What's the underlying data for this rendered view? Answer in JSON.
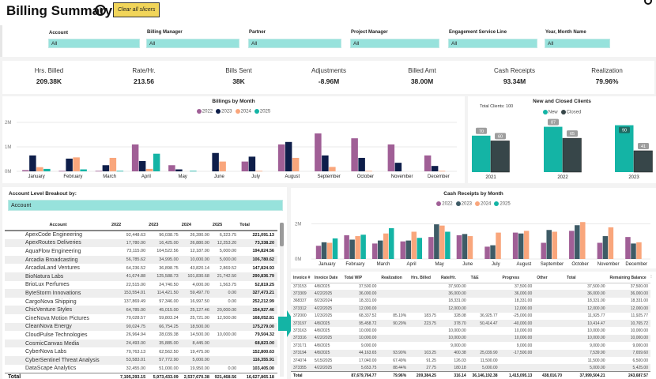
{
  "header": {
    "title": "Billing Summary",
    "info_icon": "i",
    "clear_button": "Clear all slicers"
  },
  "slicers": [
    {
      "label": "Account",
      "value": "All"
    },
    {
      "label": "Billing Manager",
      "value": "All"
    },
    {
      "label": "Partner",
      "value": "All"
    },
    {
      "label": "Project Manager",
      "value": "All"
    },
    {
      "label": "Engagement Service Line",
      "value": "All"
    },
    {
      "label": "Year, Month Name",
      "value": "All"
    }
  ],
  "kpis": [
    {
      "label": "Hrs. Billed",
      "value": "209.38K"
    },
    {
      "label": "Rate/Hr.",
      "value": "213.56"
    },
    {
      "label": "Bills Sent",
      "value": "38K"
    },
    {
      "label": "Adjustments",
      "value": "-8.96M"
    },
    {
      "label": "Billed Amt",
      "value": "38.00M"
    },
    {
      "label": "Cash Receipts",
      "value": "93.34M"
    },
    {
      "label": "Realization",
      "value": "79.96%"
    }
  ],
  "colors": {
    "y2022": "#a05f96",
    "y2023_billing": "#0e1e4a",
    "y2023_cash": "#3e5b66",
    "y2024": "#f9a67c",
    "y2025": "#14b4a5",
    "new": "#14b4a5",
    "closed": "#374649",
    "slicer": "#97e2dc",
    "clear_button": "#f1d55a"
  },
  "breakout": {
    "label": "Account Level Breakout by:",
    "selected": "Account"
  },
  "account_table": {
    "columns": [
      "Account",
      "2022",
      "2023",
      "2024",
      "2025",
      "Total"
    ],
    "rows": [
      [
        "ApexCode Engineering",
        "92,448.63",
        "96,038.75",
        "26,280.00",
        "6,323.75",
        "221,091.13"
      ],
      [
        "ApexRoutes Deliveries",
        "17,780.00",
        "16,425.00",
        "26,880.00",
        "12,253.20",
        "73,338.20"
      ],
      [
        "AquaFlow Engineering",
        "73,115.00",
        "104,522.56",
        "12,187.00",
        "5,000.00",
        "194,824.56"
      ],
      [
        "Arcadia Broadcasting",
        "56,785.62",
        "34,995.00",
        "10,000.00",
        "5,000.00",
        "106,780.62"
      ],
      [
        "ArcadiaLand Ventures",
        "64,236.52",
        "36,898.75",
        "43,820.14",
        "2,869.52",
        "147,824.93"
      ],
      [
        "BioNatura Labs",
        "41,674.88",
        "125,588.73",
        "101,830.68",
        "21,742.50",
        "290,836.79"
      ],
      [
        "BrioLux Perfumes",
        "22,515.00",
        "24,740.50",
        "4,000.00",
        "1,563.75",
        "52,819.25"
      ],
      [
        "ByteStorm Innovations",
        "153,554.01",
        "114,421.50",
        "59,497.70",
        "0.00",
        "327,473.21"
      ],
      [
        "CargoNova Shipping",
        "137,869.49",
        "97,346.00",
        "16,997.50",
        "0.00",
        "252,212.99"
      ],
      [
        "ChicVenture Styles",
        "64,785.00",
        "45,015.00",
        "25,127.46",
        "20,000.00",
        "154,927.46"
      ],
      [
        "CineNova Motion Pictures",
        "70,028.57",
        "59,803.24",
        "25,721.00",
        "12,500.00",
        "168,052.81"
      ],
      [
        "CleanNova Energy",
        "90,024.75",
        "66,754.25",
        "18,500.00",
        "",
        "175,279.00"
      ],
      [
        "CloudPulse Technologies",
        "26,964.94",
        "28,039.38",
        "14,500.00",
        "10,000.00",
        "79,504.32"
      ],
      [
        "CosmicCanvas Media",
        "24,493.00",
        "35,885.00",
        "8,445.00",
        "",
        "68,823.00"
      ],
      [
        "CyberNova Labs",
        "70,763.13",
        "62,562.50",
        "19,475.00",
        "",
        "152,800.63"
      ],
      [
        "CyberSentinel Threat Analysis",
        "53,583.01",
        "57,772.90",
        "5,000.00",
        "",
        "116,355.91"
      ],
      [
        "DataScape Analytics",
        "32,455.00",
        "51,000.00",
        "19,950.00",
        "0.00",
        "103,405.00"
      ]
    ],
    "total": [
      "Total",
      "7,195,293.15",
      "5,973,433.09",
      "2,537,670.38",
      "921,468.56",
      "16,627,865.18"
    ]
  },
  "invoice_table": {
    "columns": [
      "Invoice #",
      "Invoice Date",
      "Total WIP",
      "Realization",
      "Hrs. Billed",
      "Rate/Hr.",
      "T&E",
      "Progress",
      "Other",
      "Total",
      "Remaining Balance"
    ],
    "rows": [
      [
        "373153",
        "4/8/2025",
        "37,500.00",
        "",
        "",
        "37,500.00",
        "",
        "37,500.00",
        "",
        "37,500.00",
        "37,500.00"
      ],
      [
        "373309",
        "4/22/2025",
        "36,000.00",
        "",
        "",
        "36,000.00",
        "",
        "36,000.00",
        "",
        "36,000.00",
        "36,000.00"
      ],
      [
        "368337",
        "8/23/2024",
        "18,331.00",
        "",
        "",
        "18,331.00",
        "",
        "18,331.00",
        "",
        "18,331.00",
        "18,331.00"
      ],
      [
        "373312",
        "4/22/2025",
        "12,000.00",
        "",
        "",
        "12,000.00",
        "",
        "12,000.00",
        "",
        "12,000.00",
        "12,000.00"
      ],
      [
        "372000",
        "1/23/2025",
        "68,337.52",
        "85.19%",
        "183.75",
        "328.08",
        "36,925.77",
        "-25,000.00",
        "",
        "11,925.77",
        "11,925.77"
      ],
      [
        "373197",
        "4/8/2025",
        "95,458.72",
        "90.29%",
        "223.75",
        "378.70",
        "50,414.47",
        "-40,000.00",
        "",
        "10,414.47",
        "10,765.72"
      ],
      [
        "373163",
        "4/8/2025",
        "10,000.00",
        "",
        "",
        "10,000.00",
        "",
        "10,000.00",
        "",
        "10,000.00",
        "10,000.00"
      ],
      [
        "373316",
        "4/22/2025",
        "10,000.00",
        "",
        "",
        "10,000.00",
        "",
        "10,000.00",
        "",
        "10,000.00",
        "10,000.00"
      ],
      [
        "373171",
        "4/8/2025",
        "9,000.00",
        "",
        "",
        "9,000.00",
        "",
        "9,000.00",
        "",
        "9,000.00",
        "9,000.00"
      ],
      [
        "373194",
        "4/8/2025",
        "44,163.65",
        "93.90%",
        "103.25",
        "400.38",
        "25,039.90",
        "-17,500.00",
        "",
        "7,539.90",
        "7,659.60"
      ],
      [
        "374074",
        "5/15/2025",
        "17,040.00",
        "67.49%",
        "91.25",
        "126.03",
        "11,500.00",
        "",
        "",
        "11,500.00",
        "6,500.00"
      ],
      [
        "373355",
        "4/22/2025",
        "5,653.75",
        "88.44%",
        "27.75",
        "180.18",
        "5,000.00",
        "",
        "",
        "5,000.00",
        "5,425.00"
      ]
    ],
    "total": [
      "Total",
      "",
      "87,679,764.77",
      "79.96%",
      "209,384.25",
      "316.14",
      "36,146,192.38",
      "1,415,095.13",
      "438,016.70",
      "37,999,504.21",
      "243,687.57"
    ]
  },
  "chart_data": [
    {
      "type": "bar",
      "title": "Billings by Month",
      "categories": [
        "January",
        "February",
        "March",
        "April",
        "May",
        "June",
        "July",
        "August",
        "September",
        "October",
        "November",
        "December"
      ],
      "series": [
        {
          "name": "2022",
          "values": [
            0.05,
            0.02,
            0.02,
            1.1,
            0.25,
            0,
            0.4,
            1.1,
            1.55,
            1.35,
            1.1,
            0.65
          ]
        },
        {
          "name": "2023",
          "values": [
            0.65,
            0.52,
            0.25,
            0.42,
            0.08,
            0.75,
            0.6,
            1.2,
            0.65,
            0.55,
            0.35,
            0.22
          ]
        },
        {
          "name": "2024",
          "values": [
            0.17,
            0.57,
            0.55,
            0.1,
            0,
            0.4,
            0.02,
            0.55,
            0.18,
            0.02,
            0,
            0.02
          ]
        },
        {
          "name": "2025",
          "values": [
            0.1,
            0.08,
            0.02,
            0.72,
            0.02,
            0,
            0,
            0,
            0,
            0,
            0,
            0
          ]
        }
      ],
      "yticks": [
        "0M",
        "1M",
        "2M"
      ],
      "ylim": [
        0,
        2
      ],
      "unit": "M",
      "legend": "top-center",
      "grid": true
    },
    {
      "type": "bar",
      "title": "New and Closed Clients",
      "subtitle": "Total Clients: 100",
      "categories": [
        "2021",
        "2022",
        "2023"
      ],
      "series": [
        {
          "name": "New",
          "values": [
            70,
            87,
            90
          ]
        },
        {
          "name": "Closed",
          "values": [
            60,
            65,
            41
          ]
        }
      ],
      "ylim": [
        0,
        100
      ],
      "legend": "top-center",
      "data_labels": true
    },
    {
      "type": "bar",
      "title": "Cash Receipts by Month",
      "categories": [
        "January",
        "February",
        "March",
        "April",
        "May",
        "June",
        "July",
        "August",
        "September",
        "October",
        "November",
        "December"
      ],
      "series": [
        {
          "name": "2022",
          "values": [
            0.75,
            1.35,
            0.88,
            1.0,
            1.25,
            1.35,
            0.7,
            1.5,
            0.92,
            1.6,
            0.92,
            1.25
          ]
        },
        {
          "name": "2023",
          "values": [
            0.95,
            1.1,
            1.05,
            1.05,
            1.97,
            1.42,
            0.78,
            1.45,
            1.65,
            1.92,
            1.3,
            0.88
          ]
        },
        {
          "name": "2024",
          "values": [
            0.92,
            1.3,
            1.45,
            1.55,
            1.9,
            1.3,
            1.5,
            1.6,
            1.55,
            2.1,
            1.8,
            0.95
          ]
        },
        {
          "name": "2025",
          "values": [
            1.17,
            1.38,
            1.75,
            1.2,
            1.55,
            0,
            0,
            0,
            0,
            0,
            0,
            0
          ]
        }
      ],
      "yticks": [
        "0M",
        "2M"
      ],
      "ylim": [
        0,
        2.2
      ],
      "unit": "M",
      "legend": "top-center",
      "grid": true
    }
  ]
}
